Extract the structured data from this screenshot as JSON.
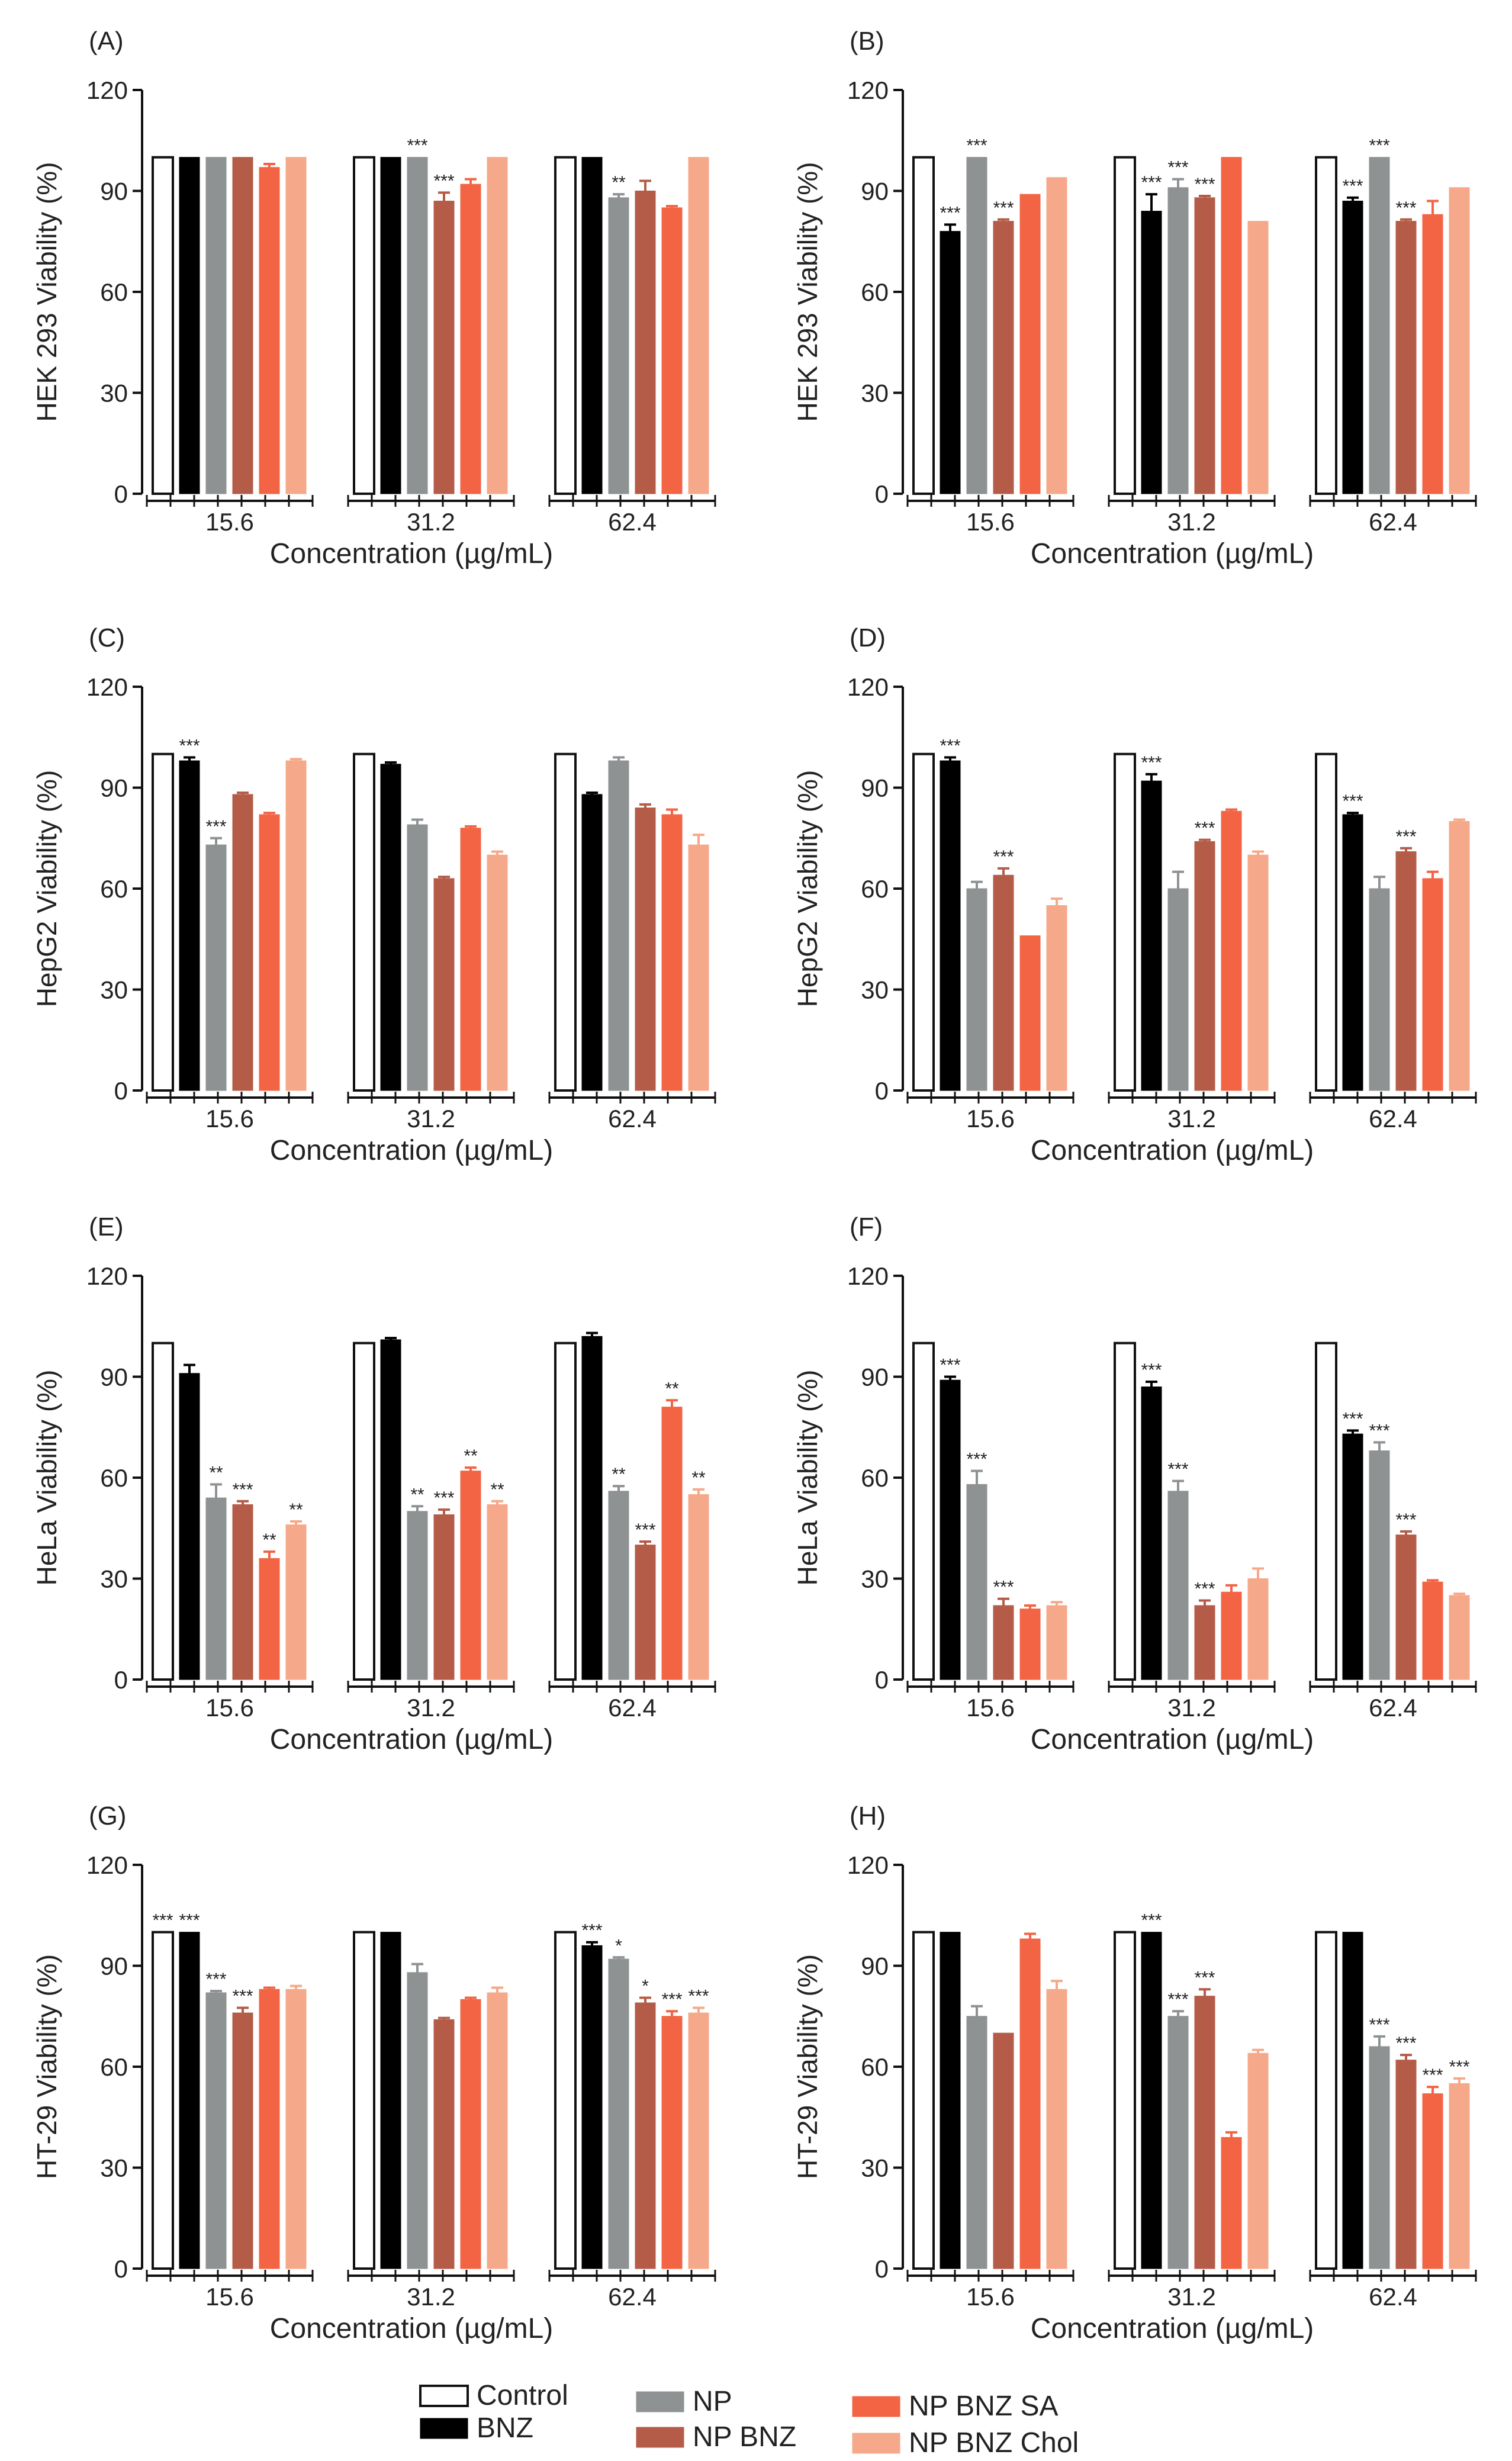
{
  "colors": {
    "Control": "#ffffff",
    "BNZ": "#000000",
    "NP": "#8e9293",
    "NP BNZ": "#b45c48",
    "NP BNZ SA": "#f26444",
    "NP BNZ Chol": "#f6a98a",
    "axis": "#111111"
  },
  "legend": {
    "items": [
      "Control",
      "BNZ",
      "NP",
      "NP BNZ",
      "NP BNZ SA",
      "NP BNZ Chol"
    ]
  },
  "chart_data": [
    {
      "id": "A",
      "panel_label": "(A)",
      "type": "bar",
      "categories": [
        "15.6",
        "31.2",
        "62.4"
      ],
      "ylabel": "HEK 293 Viability (%)",
      "xlabel": "Concentration (µg/mL)",
      "ylim": [
        0,
        120
      ],
      "yticks": [
        0,
        30,
        60,
        90,
        120
      ],
      "series": [
        {
          "name": "Control",
          "values": [
            100,
            100,
            100
          ],
          "errors": [
            0,
            0,
            0
          ],
          "annotations": [
            "",
            "",
            ""
          ]
        },
        {
          "name": "BNZ",
          "values": [
            100,
            100,
            100
          ],
          "errors": [
            0,
            0,
            0
          ],
          "annotations": [
            "",
            "",
            ""
          ]
        },
        {
          "name": "NP",
          "values": [
            100,
            100,
            88
          ],
          "errors": [
            0,
            0,
            1
          ],
          "annotations": [
            "",
            "***",
            "**"
          ]
        },
        {
          "name": "NP BNZ",
          "values": [
            100,
            87,
            90
          ],
          "errors": [
            0,
            2.5,
            3
          ],
          "annotations": [
            "",
            "***",
            ""
          ]
        },
        {
          "name": "NP BNZ SA",
          "values": [
            97,
            92,
            85
          ],
          "errors": [
            1,
            1.5,
            0.5
          ],
          "annotations": [
            "",
            "",
            ""
          ]
        },
        {
          "name": "NP BNZ Chol",
          "values": [
            100,
            100,
            100
          ],
          "errors": [
            0,
            0,
            0
          ],
          "annotations": [
            "",
            "",
            ""
          ]
        }
      ]
    },
    {
      "id": "B",
      "panel_label": "(B)",
      "type": "bar",
      "categories": [
        "15.6",
        "31.2",
        "62.4"
      ],
      "ylabel": "HEK 293 Viability (%)",
      "xlabel": "Concentration (µg/mL)",
      "ylim": [
        0,
        120
      ],
      "yticks": [
        0,
        30,
        60,
        90,
        120
      ],
      "series": [
        {
          "name": "Control",
          "values": [
            100,
            100,
            100
          ],
          "errors": [
            0,
            0,
            0
          ],
          "annotations": [
            "",
            "",
            ""
          ]
        },
        {
          "name": "BNZ",
          "values": [
            78,
            84,
            87
          ],
          "errors": [
            2,
            5,
            1
          ],
          "annotations": [
            "***",
            "***",
            "***"
          ]
        },
        {
          "name": "NP",
          "values": [
            100,
            91,
            100
          ],
          "errors": [
            0,
            2.5,
            0
          ],
          "annotations": [
            "***",
            "***",
            "***"
          ]
        },
        {
          "name": "NP BNZ",
          "values": [
            81,
            88,
            81
          ],
          "errors": [
            0.5,
            0.5,
            0.5
          ],
          "annotations": [
            "***",
            "***",
            "***"
          ]
        },
        {
          "name": "NP BNZ SA",
          "values": [
            89,
            100,
            83
          ],
          "errors": [
            0,
            0,
            4
          ],
          "annotations": [
            "",
            "",
            ""
          ]
        },
        {
          "name": "NP BNZ Chol",
          "values": [
            94,
            81,
            91
          ],
          "errors": [
            0,
            0,
            0
          ],
          "annotations": [
            "",
            "",
            ""
          ]
        }
      ]
    },
    {
      "id": "C",
      "panel_label": "(C)",
      "type": "bar",
      "categories": [
        "15.6",
        "31.2",
        "62.4"
      ],
      "ylabel": "HepG2 Viability (%)",
      "xlabel": "Concentration (µg/mL)",
      "ylim": [
        0,
        120
      ],
      "yticks": [
        0,
        30,
        60,
        90,
        120
      ],
      "series": [
        {
          "name": "Control",
          "values": [
            100,
            100,
            100
          ],
          "errors": [
            0,
            0,
            0
          ],
          "annotations": [
            "",
            "",
            ""
          ]
        },
        {
          "name": "BNZ",
          "values": [
            98,
            97,
            88
          ],
          "errors": [
            1,
            0.5,
            0.5
          ],
          "annotations": [
            "***",
            "",
            ""
          ]
        },
        {
          "name": "NP",
          "values": [
            73,
            79,
            98
          ],
          "errors": [
            2,
            1.5,
            1
          ],
          "annotations": [
            "***",
            "",
            ""
          ]
        },
        {
          "name": "NP BNZ",
          "values": [
            88,
            63,
            84
          ],
          "errors": [
            0.5,
            0.5,
            1
          ],
          "annotations": [
            "",
            "",
            ""
          ]
        },
        {
          "name": "NP BNZ SA",
          "values": [
            82,
            78,
            82
          ],
          "errors": [
            0.5,
            0.5,
            1.5
          ],
          "annotations": [
            "",
            "",
            ""
          ]
        },
        {
          "name": "NP BNZ Chol",
          "values": [
            98,
            70,
            73
          ],
          "errors": [
            0.5,
            1,
            3
          ],
          "annotations": [
            "",
            "",
            ""
          ]
        }
      ]
    },
    {
      "id": "D",
      "panel_label": "(D)",
      "type": "bar",
      "categories": [
        "15.6",
        "31.2",
        "62.4"
      ],
      "ylabel": "HepG2 Viability (%)",
      "xlabel": "Concentration (µg/mL)",
      "ylim": [
        0,
        120
      ],
      "yticks": [
        0,
        30,
        60,
        90,
        120
      ],
      "series": [
        {
          "name": "Control",
          "values": [
            100,
            100,
            100
          ],
          "errors": [
            0,
            0,
            0
          ],
          "annotations": [
            "",
            "",
            ""
          ]
        },
        {
          "name": "BNZ",
          "values": [
            98,
            92,
            82
          ],
          "errors": [
            1,
            2,
            0.5
          ],
          "annotations": [
            "***",
            "***",
            "***"
          ]
        },
        {
          "name": "NP",
          "values": [
            60,
            60,
            60
          ],
          "errors": [
            2,
            5,
            3.5
          ],
          "annotations": [
            "",
            "",
            ""
          ]
        },
        {
          "name": "NP BNZ",
          "values": [
            64,
            74,
            71
          ],
          "errors": [
            2,
            0.5,
            1
          ],
          "annotations": [
            "***",
            "***",
            "***"
          ]
        },
        {
          "name": "NP BNZ SA",
          "values": [
            46,
            83,
            63
          ],
          "errors": [
            0,
            0.5,
            2
          ],
          "annotations": [
            "",
            "",
            ""
          ]
        },
        {
          "name": "NP BNZ Chol",
          "values": [
            55,
            70,
            80
          ],
          "errors": [
            2,
            1,
            0.5
          ],
          "annotations": [
            "",
            "",
            ""
          ]
        }
      ]
    },
    {
      "id": "E",
      "panel_label": "(E)",
      "type": "bar",
      "categories": [
        "15.6",
        "31.2",
        "62.4"
      ],
      "ylabel": "HeLa Viability (%)",
      "xlabel": "Concentration (µg/mL)",
      "ylim": [
        0,
        120
      ],
      "yticks": [
        0,
        30,
        60,
        90,
        120
      ],
      "series": [
        {
          "name": "Control",
          "values": [
            100,
            100,
            100
          ],
          "errors": [
            0,
            0,
            0
          ],
          "annotations": [
            "",
            "",
            ""
          ]
        },
        {
          "name": "BNZ",
          "values": [
            91,
            101,
            102
          ],
          "errors": [
            2.5,
            0.5,
            1
          ],
          "annotations": [
            "",
            "",
            ""
          ]
        },
        {
          "name": "NP",
          "values": [
            54,
            50,
            56
          ],
          "errors": [
            4,
            1.5,
            1.5
          ],
          "annotations": [
            "**",
            "**",
            "**"
          ]
        },
        {
          "name": "NP BNZ",
          "values": [
            52,
            49,
            40
          ],
          "errors": [
            1,
            1.5,
            1
          ],
          "annotations": [
            "***",
            "***",
            "***"
          ]
        },
        {
          "name": "NP BNZ SA",
          "values": [
            36,
            62,
            81
          ],
          "errors": [
            2,
            1,
            2
          ],
          "annotations": [
            "**",
            "**",
            "**"
          ]
        },
        {
          "name": "NP BNZ Chol",
          "values": [
            46,
            52,
            55
          ],
          "errors": [
            1,
            1,
            1.5
          ],
          "annotations": [
            "**",
            "**",
            "**"
          ]
        }
      ]
    },
    {
      "id": "F",
      "panel_label": "(F)",
      "type": "bar",
      "categories": [
        "15.6",
        "31.2",
        "62.4"
      ],
      "ylabel": "HeLa Viability (%)",
      "xlabel": "Concentration (µg/mL)",
      "ylim": [
        0,
        120
      ],
      "yticks": [
        0,
        30,
        60,
        90,
        120
      ],
      "series": [
        {
          "name": "Control",
          "values": [
            100,
            100,
            100
          ],
          "errors": [
            0,
            0,
            0
          ],
          "annotations": [
            "",
            "",
            ""
          ]
        },
        {
          "name": "BNZ",
          "values": [
            89,
            87,
            73
          ],
          "errors": [
            1,
            1.5,
            1
          ],
          "annotations": [
            "***",
            "***",
            "***"
          ]
        },
        {
          "name": "NP",
          "values": [
            58,
            56,
            68
          ],
          "errors": [
            4,
            3,
            2.5
          ],
          "annotations": [
            "***",
            "***",
            "***"
          ]
        },
        {
          "name": "NP BNZ",
          "values": [
            22,
            22,
            43
          ],
          "errors": [
            2,
            1.5,
            1
          ],
          "annotations": [
            "***",
            "***",
            "***"
          ]
        },
        {
          "name": "NP BNZ SA",
          "values": [
            21,
            26,
            29
          ],
          "errors": [
            1,
            2,
            0.5
          ],
          "annotations": [
            "",
            "",
            ""
          ]
        },
        {
          "name": "NP BNZ Chol",
          "values": [
            22,
            30,
            25
          ],
          "errors": [
            1,
            3,
            0.5
          ],
          "annotations": [
            "",
            "",
            ""
          ]
        }
      ]
    },
    {
      "id": "G",
      "panel_label": "(G)",
      "type": "bar",
      "categories": [
        "15.6",
        "31.2",
        "62.4"
      ],
      "ylabel": "HT-29 Viability (%)",
      "xlabel": "Concentration (µg/mL)",
      "ylim": [
        0,
        120
      ],
      "yticks": [
        0,
        30,
        60,
        90,
        120
      ],
      "series": [
        {
          "name": "Control",
          "values": [
            100,
            100,
            100
          ],
          "errors": [
            0,
            0,
            0
          ],
          "annotations": [
            "***",
            "",
            ""
          ]
        },
        {
          "name": "BNZ",
          "values": [
            100,
            100,
            96
          ],
          "errors": [
            0,
            0,
            1
          ],
          "annotations": [
            "***",
            "",
            "***"
          ]
        },
        {
          "name": "NP",
          "values": [
            82,
            88,
            92
          ],
          "errors": [
            0.5,
            2.5,
            0.5
          ],
          "annotations": [
            "***",
            "",
            "*"
          ]
        },
        {
          "name": "NP BNZ",
          "values": [
            76,
            74,
            79
          ],
          "errors": [
            1.5,
            0.5,
            1.5
          ],
          "annotations": [
            "***",
            "",
            "*"
          ]
        },
        {
          "name": "NP BNZ SA",
          "values": [
            83,
            80,
            75
          ],
          "errors": [
            0.5,
            0.5,
            1.5
          ],
          "annotations": [
            "",
            "",
            "***"
          ]
        },
        {
          "name": "NP BNZ Chol",
          "values": [
            83,
            82,
            76
          ],
          "errors": [
            1,
            1.5,
            1.5
          ],
          "annotations": [
            "",
            "",
            "***"
          ]
        }
      ]
    },
    {
      "id": "H",
      "panel_label": "(H)",
      "type": "bar",
      "categories": [
        "15.6",
        "31.2",
        "62.4"
      ],
      "ylabel": "HT-29 Viability (%)",
      "xlabel": "Concentration (µg/mL)",
      "ylim": [
        0,
        120
      ],
      "yticks": [
        0,
        30,
        60,
        90,
        120
      ],
      "series": [
        {
          "name": "Control",
          "values": [
            100,
            100,
            100
          ],
          "errors": [
            0,
            0,
            0
          ],
          "annotations": [
            "",
            "",
            ""
          ]
        },
        {
          "name": "BNZ",
          "values": [
            100,
            100,
            100
          ],
          "errors": [
            0,
            0,
            0
          ],
          "annotations": [
            "",
            "***",
            ""
          ]
        },
        {
          "name": "NP",
          "values": [
            75,
            75,
            66
          ],
          "errors": [
            3,
            1.5,
            3
          ],
          "annotations": [
            "",
            "***",
            "***"
          ]
        },
        {
          "name": "NP BNZ",
          "values": [
            70,
            81,
            62
          ],
          "errors": [
            0,
            2,
            1.5
          ],
          "annotations": [
            "",
            "***",
            "***"
          ]
        },
        {
          "name": "NP BNZ SA",
          "values": [
            98,
            39,
            52
          ],
          "errors": [
            1.5,
            1.5,
            2
          ],
          "annotations": [
            "",
            "",
            "***"
          ]
        },
        {
          "name": "NP BNZ Chol",
          "values": [
            83,
            64,
            55
          ],
          "errors": [
            2.5,
            1,
            1.5
          ],
          "annotations": [
            "",
            "",
            "***"
          ]
        }
      ]
    }
  ]
}
